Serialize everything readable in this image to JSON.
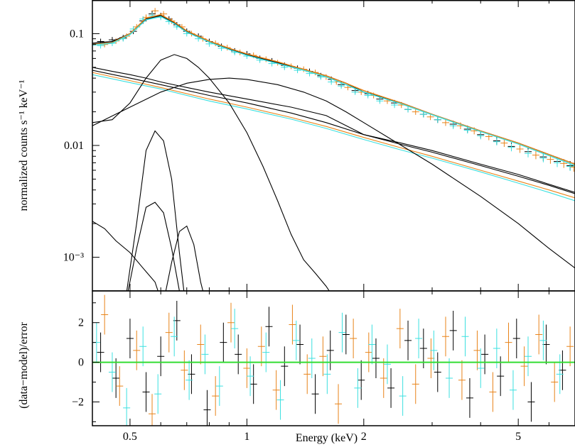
{
  "chart_data": [
    {
      "type": "line",
      "panel": "spectrum",
      "title": "",
      "xlabel": "",
      "ylabel": "normalized counts s⁻¹ keV⁻¹",
      "xscale": "log",
      "yscale": "log",
      "xlim": [
        0.4,
        7.0
      ],
      "ylim": [
        0.0005,
        0.2
      ],
      "ytick_labels": [
        "0.1",
        "0.01",
        "10⁻³"
      ],
      "ytick_values": [
        0.1,
        0.01,
        0.001
      ],
      "grid": false,
      "legend": "none",
      "series": [
        {
          "kind": "data",
          "color": "#000000",
          "x": [
            0.42,
            0.45,
            0.48,
            0.51,
            0.54,
            0.57,
            0.6,
            0.63,
            0.66,
            0.7,
            0.75,
            0.8,
            0.86,
            0.93,
            1.0,
            1.08,
            1.16,
            1.25,
            1.35,
            1.45,
            1.55,
            1.65,
            1.75,
            1.9,
            2.05,
            2.2,
            2.4,
            2.6,
            2.85,
            3.1,
            3.4,
            3.7,
            4.0,
            4.4,
            4.8,
            5.3,
            5.8,
            6.3,
            6.8
          ],
          "y": [
            0.085,
            0.088,
            0.092,
            0.105,
            0.13,
            0.15,
            0.145,
            0.135,
            0.12,
            0.105,
            0.095,
            0.085,
            0.077,
            0.07,
            0.066,
            0.06,
            0.057,
            0.052,
            0.049,
            0.046,
            0.042,
            0.039,
            0.035,
            0.031,
            0.029,
            0.026,
            0.024,
            0.021,
            0.019,
            0.017,
            0.0155,
            0.014,
            0.0125,
            0.011,
            0.0098,
            0.0088,
            0.0079,
            0.0072,
            0.0066
          ]
        },
        {
          "kind": "data",
          "color": "#e8841a",
          "x": [
            0.43,
            0.46,
            0.49,
            0.52,
            0.55,
            0.58,
            0.61,
            0.64,
            0.68,
            0.72,
            0.77,
            0.83,
            0.89,
            0.96,
            1.04,
            1.12,
            1.2,
            1.3,
            1.4,
            1.5,
            1.6,
            1.7,
            1.82,
            1.97,
            2.12,
            2.3,
            2.5,
            2.72,
            2.97,
            3.25,
            3.55,
            3.85,
            4.2,
            4.6,
            5.05,
            5.55,
            6.05,
            6.55,
            6.95
          ],
          "y": [
            0.08,
            0.086,
            0.095,
            0.115,
            0.14,
            0.16,
            0.15,
            0.13,
            0.115,
            0.1,
            0.09,
            0.082,
            0.075,
            0.068,
            0.064,
            0.059,
            0.055,
            0.051,
            0.048,
            0.045,
            0.041,
            0.037,
            0.033,
            0.03,
            0.028,
            0.025,
            0.023,
            0.02,
            0.018,
            0.016,
            0.015,
            0.0135,
            0.012,
            0.0105,
            0.0093,
            0.0082,
            0.0075,
            0.0069,
            0.0064
          ]
        },
        {
          "kind": "data",
          "color": "#3ce0e0",
          "x": [
            0.42,
            0.45,
            0.48,
            0.51,
            0.54,
            0.57,
            0.6,
            0.63,
            0.66,
            0.7,
            0.75,
            0.8,
            0.86,
            0.93,
            1.0,
            1.08,
            1.16,
            1.25,
            1.35,
            1.45,
            1.55,
            1.65,
            1.75,
            1.9,
            2.05,
            2.2,
            2.4,
            2.6,
            2.85,
            3.1,
            3.4,
            3.7,
            4.0,
            4.4,
            4.8,
            5.3,
            5.8,
            6.3,
            6.8
          ],
          "y": [
            0.078,
            0.082,
            0.09,
            0.11,
            0.135,
            0.145,
            0.14,
            0.128,
            0.115,
            0.1,
            0.09,
            0.081,
            0.074,
            0.068,
            0.063,
            0.058,
            0.054,
            0.05,
            0.047,
            0.044,
            0.041,
            0.037,
            0.034,
            0.03,
            0.028,
            0.025,
            0.023,
            0.021,
            0.019,
            0.017,
            0.015,
            0.0137,
            0.0122,
            0.0108,
            0.0096,
            0.0085,
            0.0077,
            0.007,
            0.0065
          ]
        },
        {
          "kind": "model-total",
          "color": "#000000",
          "x": [
            0.4,
            0.45,
            0.5,
            0.55,
            0.6,
            0.65,
            0.7,
            0.8,
            0.9,
            1.0,
            1.2,
            1.4,
            1.6,
            1.8,
            2.0,
            2.5,
            3.0,
            4.0,
            5.0,
            6.0,
            7.0
          ],
          "y": [
            0.082,
            0.085,
            0.1,
            0.135,
            0.145,
            0.125,
            0.105,
            0.085,
            0.073,
            0.065,
            0.055,
            0.048,
            0.042,
            0.036,
            0.03,
            0.024,
            0.019,
            0.0135,
            0.0105,
            0.0083,
            0.0068
          ]
        },
        {
          "kind": "model-total",
          "color": "#e8841a",
          "x": [
            0.4,
            0.45,
            0.5,
            0.55,
            0.6,
            0.65,
            0.7,
            0.8,
            0.9,
            1.0,
            1.2,
            1.4,
            1.6,
            1.8,
            2.0,
            2.5,
            3.0,
            4.0,
            5.0,
            6.0,
            7.0
          ],
          "y": [
            0.08,
            0.083,
            0.1,
            0.138,
            0.148,
            0.127,
            0.106,
            0.086,
            0.074,
            0.066,
            0.056,
            0.048,
            0.042,
            0.036,
            0.031,
            0.024,
            0.019,
            0.0135,
            0.0105,
            0.0083,
            0.0068
          ]
        },
        {
          "kind": "model-total",
          "color": "#3ce0e0",
          "x": [
            0.4,
            0.45,
            0.5,
            0.55,
            0.6,
            0.65,
            0.7,
            0.8,
            0.9,
            1.0,
            1.2,
            1.4,
            1.6,
            1.8,
            2.0,
            2.5,
            3.0,
            4.0,
            5.0,
            6.0,
            7.0
          ],
          "y": [
            0.079,
            0.082,
            0.098,
            0.133,
            0.142,
            0.123,
            0.103,
            0.084,
            0.072,
            0.064,
            0.054,
            0.047,
            0.041,
            0.035,
            0.03,
            0.0235,
            0.0188,
            0.0133,
            0.0103,
            0.0081,
            0.0066
          ]
        },
        {
          "kind": "model-component",
          "color": "#000000",
          "x": [
            0.4,
            0.45,
            0.5,
            0.55,
            0.6,
            0.7,
            0.8,
            1.0,
            1.3,
            1.6,
            2.0,
            2.5,
            3.0,
            4.0,
            5.0,
            6.0,
            7.0
          ],
          "y": [
            0.05,
            0.046,
            0.043,
            0.04,
            0.037,
            0.033,
            0.03,
            0.026,
            0.022,
            0.0185,
            0.0125,
            0.0105,
            0.009,
            0.0068,
            0.0055,
            0.0045,
            0.0038
          ]
        },
        {
          "kind": "model-component",
          "color": "#000000",
          "x": [
            0.4,
            0.5,
            0.6,
            0.8,
            1.0,
            1.3,
            1.6,
            2.0,
            2.5,
            3.0,
            4.0,
            5.0,
            6.0,
            7.0
          ],
          "y": [
            0.047,
            0.04,
            0.035,
            0.028,
            0.024,
            0.0195,
            0.016,
            0.0125,
            0.0102,
            0.0087,
            0.0066,
            0.0053,
            0.0044,
            0.0037
          ]
        },
        {
          "kind": "model-component",
          "color": "#e8841a",
          "x": [
            0.4,
            0.5,
            0.6,
            0.8,
            1.0,
            1.3,
            1.6,
            2.0,
            2.5,
            3.0,
            4.0,
            5.0,
            6.0,
            7.0
          ],
          "y": [
            0.045,
            0.038,
            0.033,
            0.026,
            0.022,
            0.0178,
            0.0148,
            0.0118,
            0.0095,
            0.008,
            0.006,
            0.0048,
            0.004,
            0.0034
          ]
        },
        {
          "kind": "model-component",
          "color": "#3ce0e0",
          "x": [
            0.4,
            0.5,
            0.6,
            0.8,
            1.0,
            1.3,
            1.6,
            2.0,
            2.5,
            3.0,
            4.0,
            5.0,
            6.0,
            7.0
          ],
          "y": [
            0.043,
            0.0365,
            0.032,
            0.025,
            0.0212,
            0.0172,
            0.0142,
            0.0113,
            0.0091,
            0.0077,
            0.0058,
            0.0046,
            0.0038,
            0.0032
          ]
        },
        {
          "kind": "model-component",
          "color": "#000000",
          "x": [
            0.4,
            0.45,
            0.5,
            0.55,
            0.6,
            0.65,
            0.7,
            0.75,
            0.8,
            0.9,
            1.0,
            1.1,
            1.2,
            1.3,
            1.4,
            1.5,
            1.6,
            1.7
          ],
          "y": [
            0.016,
            0.017,
            0.024,
            0.04,
            0.058,
            0.065,
            0.06,
            0.05,
            0.04,
            0.024,
            0.013,
            0.0065,
            0.0032,
            0.0016,
            0.00095,
            0.00072,
            0.00055,
            0.0004
          ]
        },
        {
          "kind": "model-component",
          "color": "#000000",
          "x": [
            0.4,
            0.5,
            0.6,
            0.7,
            0.8,
            0.9,
            1.0,
            1.2,
            1.4,
            1.6,
            1.8,
            2.0,
            2.5,
            3.0,
            4.0,
            5.0,
            6.0,
            7.0
          ],
          "y": [
            0.015,
            0.022,
            0.03,
            0.036,
            0.039,
            0.04,
            0.039,
            0.035,
            0.03,
            0.025,
            0.02,
            0.016,
            0.01,
            0.0068,
            0.0035,
            0.002,
            0.0012,
            0.0008
          ]
        },
        {
          "kind": "model-component",
          "color": "#000000",
          "x": [
            0.48,
            0.52,
            0.55,
            0.58,
            0.61,
            0.64,
            0.67,
            0.7
          ],
          "y": [
            0.0003,
            0.002,
            0.009,
            0.0135,
            0.011,
            0.005,
            0.0011,
            0.0003
          ]
        },
        {
          "kind": "model-component",
          "color": "#000000",
          "x": [
            0.48,
            0.52,
            0.55,
            0.58,
            0.61,
            0.64,
            0.67,
            0.7
          ],
          "y": [
            0.0003,
            0.0012,
            0.0028,
            0.0031,
            0.0025,
            0.0012,
            0.0005,
            0.0003
          ]
        },
        {
          "kind": "model-component",
          "color": "#000000",
          "x": [
            0.6,
            0.64,
            0.67,
            0.7,
            0.73,
            0.76,
            0.8
          ],
          "y": [
            0.0003,
            0.0009,
            0.0017,
            0.0019,
            0.0013,
            0.0006,
            0.0003
          ]
        },
        {
          "kind": "model-component",
          "color": "#000000",
          "x": [
            0.4,
            0.43,
            0.46,
            0.5,
            0.54,
            0.58,
            0.62
          ],
          "y": [
            0.0021,
            0.0018,
            0.0014,
            0.0011,
            0.0008,
            0.0006,
            0.0003
          ]
        }
      ]
    },
    {
      "type": "scatter",
      "panel": "residuals",
      "title": "",
      "xlabel": "Energy (keV)",
      "ylabel": "(data−model)/error",
      "xscale": "log",
      "xlim": [
        0.4,
        7.0
      ],
      "ylim": [
        -3.2,
        3.6
      ],
      "xtick_labels": [
        "0.5",
        "1",
        "2",
        "5"
      ],
      "xtick_values": [
        0.5,
        1,
        2,
        5
      ],
      "ytick_labels": [
        "2",
        "0",
        "−2"
      ],
      "ytick_values": [
        2,
        0,
        -2
      ],
      "reference_line": {
        "y": 0,
        "color": "#33dd33"
      },
      "grid": false,
      "legend": "none",
      "series": [
        {
          "color": "#000000",
          "x": [
            0.42,
            0.46,
            0.5,
            0.55,
            0.6,
            0.66,
            0.72,
            0.79,
            0.87,
            0.95,
            1.04,
            1.14,
            1.25,
            1.37,
            1.5,
            1.64,
            1.8,
            1.97,
            2.15,
            2.35,
            2.6,
            2.85,
            3.1,
            3.4,
            3.75,
            4.1,
            4.5,
            4.95,
            5.4,
            5.9,
            6.5
          ],
          "y": [
            0.5,
            -0.8,
            1.2,
            -1.5,
            0.3,
            2.1,
            -0.6,
            -2.4,
            1.0,
            0.4,
            -1.1,
            1.8,
            -0.2,
            0.9,
            -1.6,
            0.6,
            1.4,
            -0.9,
            0.2,
            -1.3,
            1.1,
            0.7,
            -0.5,
            1.6,
            -1.8,
            0.4,
            -0.7,
            1.2,
            -2.0,
            0.9,
            -0.4
          ]
        },
        {
          "color": "#e8841a",
          "x": [
            0.43,
            0.47,
            0.52,
            0.57,
            0.63,
            0.69,
            0.76,
            0.83,
            0.91,
            1.0,
            1.09,
            1.19,
            1.31,
            1.43,
            1.57,
            1.72,
            1.88,
            2.06,
            2.25,
            2.48,
            2.72,
            2.98,
            3.25,
            3.58,
            3.92,
            4.3,
            4.72,
            5.18,
            5.65,
            6.2,
            6.8
          ],
          "y": [
            2.4,
            -1.2,
            0.6,
            -2.6,
            1.5,
            -0.4,
            0.9,
            -1.7,
            2.0,
            -0.3,
            0.8,
            -1.4,
            1.9,
            -0.6,
            0.3,
            -2.1,
            1.2,
            0.5,
            -0.8,
            1.7,
            -1.1,
            0.2,
            1.3,
            -0.9,
            0.6,
            -1.5,
            1.0,
            -0.2,
            1.4,
            -1.0,
            0.8
          ]
        },
        {
          "color": "#3ce0e0",
          "x": [
            0.41,
            0.45,
            0.49,
            0.54,
            0.59,
            0.65,
            0.71,
            0.78,
            0.85,
            0.93,
            1.02,
            1.12,
            1.22,
            1.34,
            1.47,
            1.61,
            1.76,
            1.93,
            2.1,
            2.3,
            2.52,
            2.77,
            3.03,
            3.32,
            3.65,
            4.0,
            4.4,
            4.85,
            5.3,
            5.8,
            6.4
          ],
          "y": [
            1.0,
            -0.5,
            -2.3,
            0.8,
            -1.6,
            1.3,
            -0.9,
            0.4,
            -1.2,
            1.7,
            -0.7,
            0.5,
            -1.9,
            1.1,
            0.2,
            -0.6,
            1.5,
            -1.3,
            0.9,
            -0.1,
            -1.7,
            1.2,
            0.6,
            -0.8,
            1.3,
            -0.3,
            0.7,
            -1.4,
            0.3,
            1.1,
            -0.6
          ]
        }
      ]
    }
  ]
}
